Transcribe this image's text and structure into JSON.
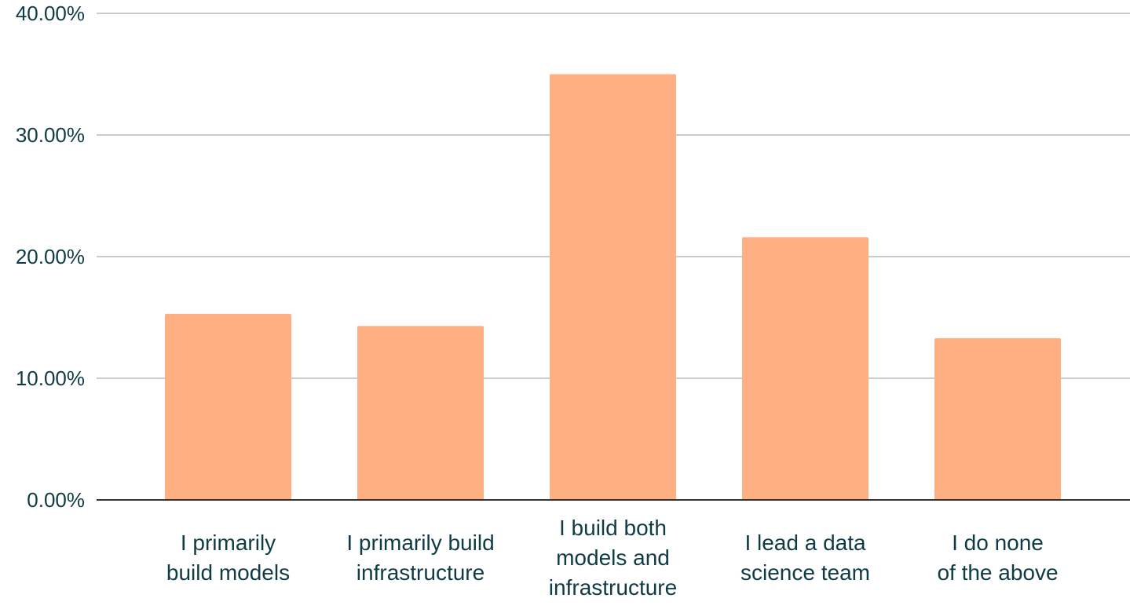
{
  "chart_data": {
    "type": "bar",
    "categories": [
      [
        "I primarily",
        "build models"
      ],
      [
        "I primarily build",
        "infrastructure"
      ],
      [
        "I build both",
        "models and",
        "infrastructure"
      ],
      [
        "I lead a data",
        "science team"
      ],
      [
        "I do none",
        "of the above"
      ]
    ],
    "values": [
      15.3,
      14.3,
      35.0,
      21.6,
      13.3
    ],
    "ylim": [
      0,
      40
    ],
    "yticks": [
      0,
      10,
      20,
      30,
      40
    ],
    "ytick_labels": [
      "0.00%",
      "10.00%",
      "20.00%",
      "30.00%",
      "40.00%"
    ],
    "title": "",
    "xlabel": "",
    "ylabel": "",
    "grid": true,
    "legend": "none",
    "colors": {
      "bar": "#ffb083",
      "grid": "#cccccc",
      "axis": "#333333",
      "text": "#0f3b45"
    }
  }
}
